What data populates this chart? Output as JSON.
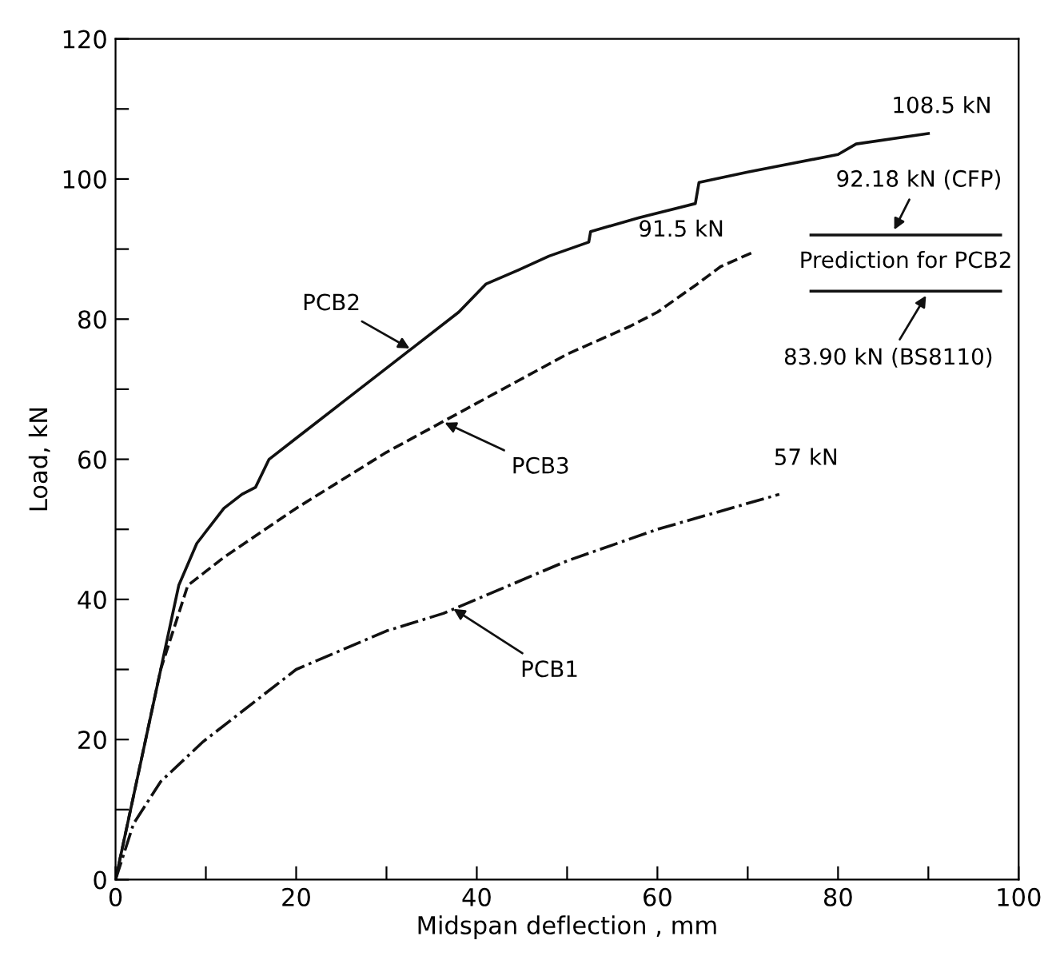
{
  "chart_data": {
    "type": "line",
    "xlabel": "Midspan deflection , mm",
    "ylabel": "Load, kN",
    "xlim": [
      0,
      100
    ],
    "ylim": [
      0,
      120
    ],
    "xticks": [
      0,
      {
        "value": 10,
        "label": null
      },
      20,
      {
        "value": 30,
        "label": null
      },
      40,
      {
        "value": 50,
        "label": null
      },
      60,
      {
        "value": 70,
        "label": null
      },
      80,
      {
        "value": 90,
        "label": null
      },
      100
    ],
    "yticks": [
      0,
      {
        "value": 10,
        "label": null
      },
      20,
      {
        "value": 30,
        "label": null
      },
      40,
      {
        "value": 50,
        "label": null
      },
      60,
      {
        "value": 70,
        "label": null
      },
      80,
      {
        "value": 90,
        "label": null
      },
      100,
      {
        "value": 110,
        "label": null
      },
      120
    ],
    "grid": false,
    "marker": "none",
    "series": [
      {
        "color": "#111111",
        "line_style": "solid",
        "x": [
          0,
          2,
          5,
          7,
          9,
          12,
          14,
          15.5,
          17,
          20,
          25,
          28,
          33,
          38,
          41,
          44.6,
          48,
          52.4,
          52.6,
          58,
          64.2,
          64.6,
          70,
          80,
          82,
          90
        ],
        "values": [
          0,
          12,
          30,
          42,
          48,
          53,
          55,
          56,
          60,
          63,
          68,
          71,
          76,
          81,
          85,
          87,
          89,
          91,
          92.5,
          94.5,
          96.5,
          99.5,
          101,
          103.5,
          105,
          106.5
        ]
      },
      {
        "color": "#111111",
        "line_style": "dashed",
        "x": [
          0,
          2,
          5,
          8,
          12,
          20,
          30,
          40,
          50,
          57,
          60,
          64.4,
          67,
          70.5
        ],
        "values": [
          0,
          12,
          30,
          42,
          46,
          53,
          61,
          68,
          75,
          79,
          81,
          85,
          87.5,
          89.5
        ]
      },
      {
        "color": "#111111",
        "line_style": "dashdot",
        "x": [
          0,
          2,
          5,
          9.7,
          20,
          30,
          36.3,
          50,
          60,
          73.5
        ],
        "values": [
          0,
          8,
          14,
          19.7,
          30,
          35.5,
          38,
          45.5,
          50,
          55
        ]
      },
      {
        "color": "#111111",
        "line_style": "solid",
        "x": [
          77,
          98
        ],
        "values": [
          92,
          92
        ]
      },
      {
        "color": "#111111",
        "line_style": "solid",
        "x": [
          77,
          98
        ],
        "values": [
          84,
          84
        ]
      }
    ],
    "annotations": [
      {
        "text": "PCB2",
        "x": 33,
        "y": 75.5
      },
      {
        "text": "PCB3",
        "x": 36,
        "y": 65.5
      },
      {
        "text": "PCB1",
        "x": 37,
        "y": 39
      },
      {
        "text": "108.5 kN",
        "x": 90,
        "y": 106.5
      },
      {
        "text": "92.18 kN (CFP)",
        "x": 86,
        "y": 92.18
      },
      "Prediction for PCB2",
      {
        "text": "83.90 kN (BS8110)",
        "x": 90,
        "y": 83.9
      },
      {
        "text": "91.5 kN",
        "x": 70.5,
        "y": 89.5
      },
      {
        "text": "57 kN",
        "x": 73.5,
        "y": 55
      }
    ]
  }
}
